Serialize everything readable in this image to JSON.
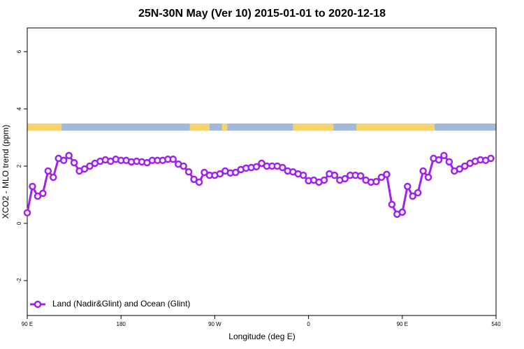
{
  "chart_data": {
    "type": "line",
    "title": "25N-30N May (Ver 10)   2015-01-01 to 2020-12-18",
    "x_label": "Longitude (deg E)",
    "y_label": "XCO2 - MLO trend (ppm)",
    "xlim": [
      90,
      540
    ],
    "xticks": [
      {
        "value": 90,
        "label": "90 E"
      },
      180,
      {
        "value": 270,
        "label": "90 W"
      },
      {
        "value": 360,
        "label": "0"
      },
      {
        "value": 450,
        "label": "90 E"
      },
      540
    ],
    "ylim": [
      -3.22,
      6.83
    ],
    "yticks": [
      -2,
      0,
      2,
      4,
      6
    ],
    "legend": "bottom-left",
    "band": {
      "ylim": [
        3.24,
        3.49
      ],
      "ocean_color": "#a3b9d9",
      "land_color": "#f7d56e",
      "land": [
        [
          90,
          123
        ],
        [
          246,
          265
        ],
        [
          277,
          282
        ],
        [
          345,
          384
        ],
        [
          406,
          481
        ]
      ]
    },
    "series": [
      {
        "name": "Land (Nadir&Glint) and Ocean (Glint)",
        "color": "#a020f0",
        "x": [
          90,
          95,
          100,
          105,
          110,
          115,
          120,
          125,
          130,
          135,
          140,
          145,
          150,
          155,
          160,
          165,
          170,
          175,
          180,
          185,
          190,
          195,
          200,
          205,
          210,
          215,
          220,
          225,
          230,
          235,
          240,
          245,
          250,
          255,
          260,
          265,
          270,
          275,
          280,
          285,
          290,
          295,
          300,
          305,
          310,
          315,
          320,
          325,
          330,
          335,
          340,
          345,
          350,
          355,
          360,
          365,
          370,
          375,
          380,
          385,
          390,
          395,
          400,
          405,
          410,
          415,
          420,
          425,
          430,
          435,
          440,
          445,
          450,
          455,
          460,
          465,
          470,
          475,
          480,
          485,
          490,
          495,
          500,
          505,
          510,
          515,
          520,
          525,
          530,
          535
        ],
        "values": [
          0.37,
          1.29,
          0.95,
          1.05,
          1.83,
          1.61,
          2.27,
          2.2,
          2.37,
          2.12,
          1.83,
          1.9,
          2.0,
          2.1,
          2.17,
          2.22,
          2.17,
          2.24,
          2.2,
          2.2,
          2.15,
          2.17,
          2.15,
          2.12,
          2.2,
          2.2,
          2.2,
          2.24,
          2.24,
          2.07,
          2.0,
          1.8,
          1.54,
          1.44,
          1.78,
          1.68,
          1.68,
          1.73,
          1.83,
          1.76,
          1.78,
          1.88,
          1.93,
          1.95,
          1.98,
          2.1,
          2.0,
          2.0,
          2.0,
          1.95,
          1.83,
          1.8,
          1.73,
          1.68,
          1.49,
          1.51,
          1.44,
          1.51,
          1.73,
          1.68,
          1.51,
          1.56,
          1.68,
          1.68,
          1.66,
          1.51,
          1.44,
          1.46,
          1.61,
          1.71,
          0.66,
          0.32,
          0.39,
          1.29,
          0.95,
          1.07,
          1.83,
          1.61,
          2.27,
          2.22,
          2.37,
          2.15,
          1.83,
          1.9,
          2.0,
          2.1,
          2.17,
          2.22,
          2.2,
          2.27
        ]
      }
    ]
  }
}
